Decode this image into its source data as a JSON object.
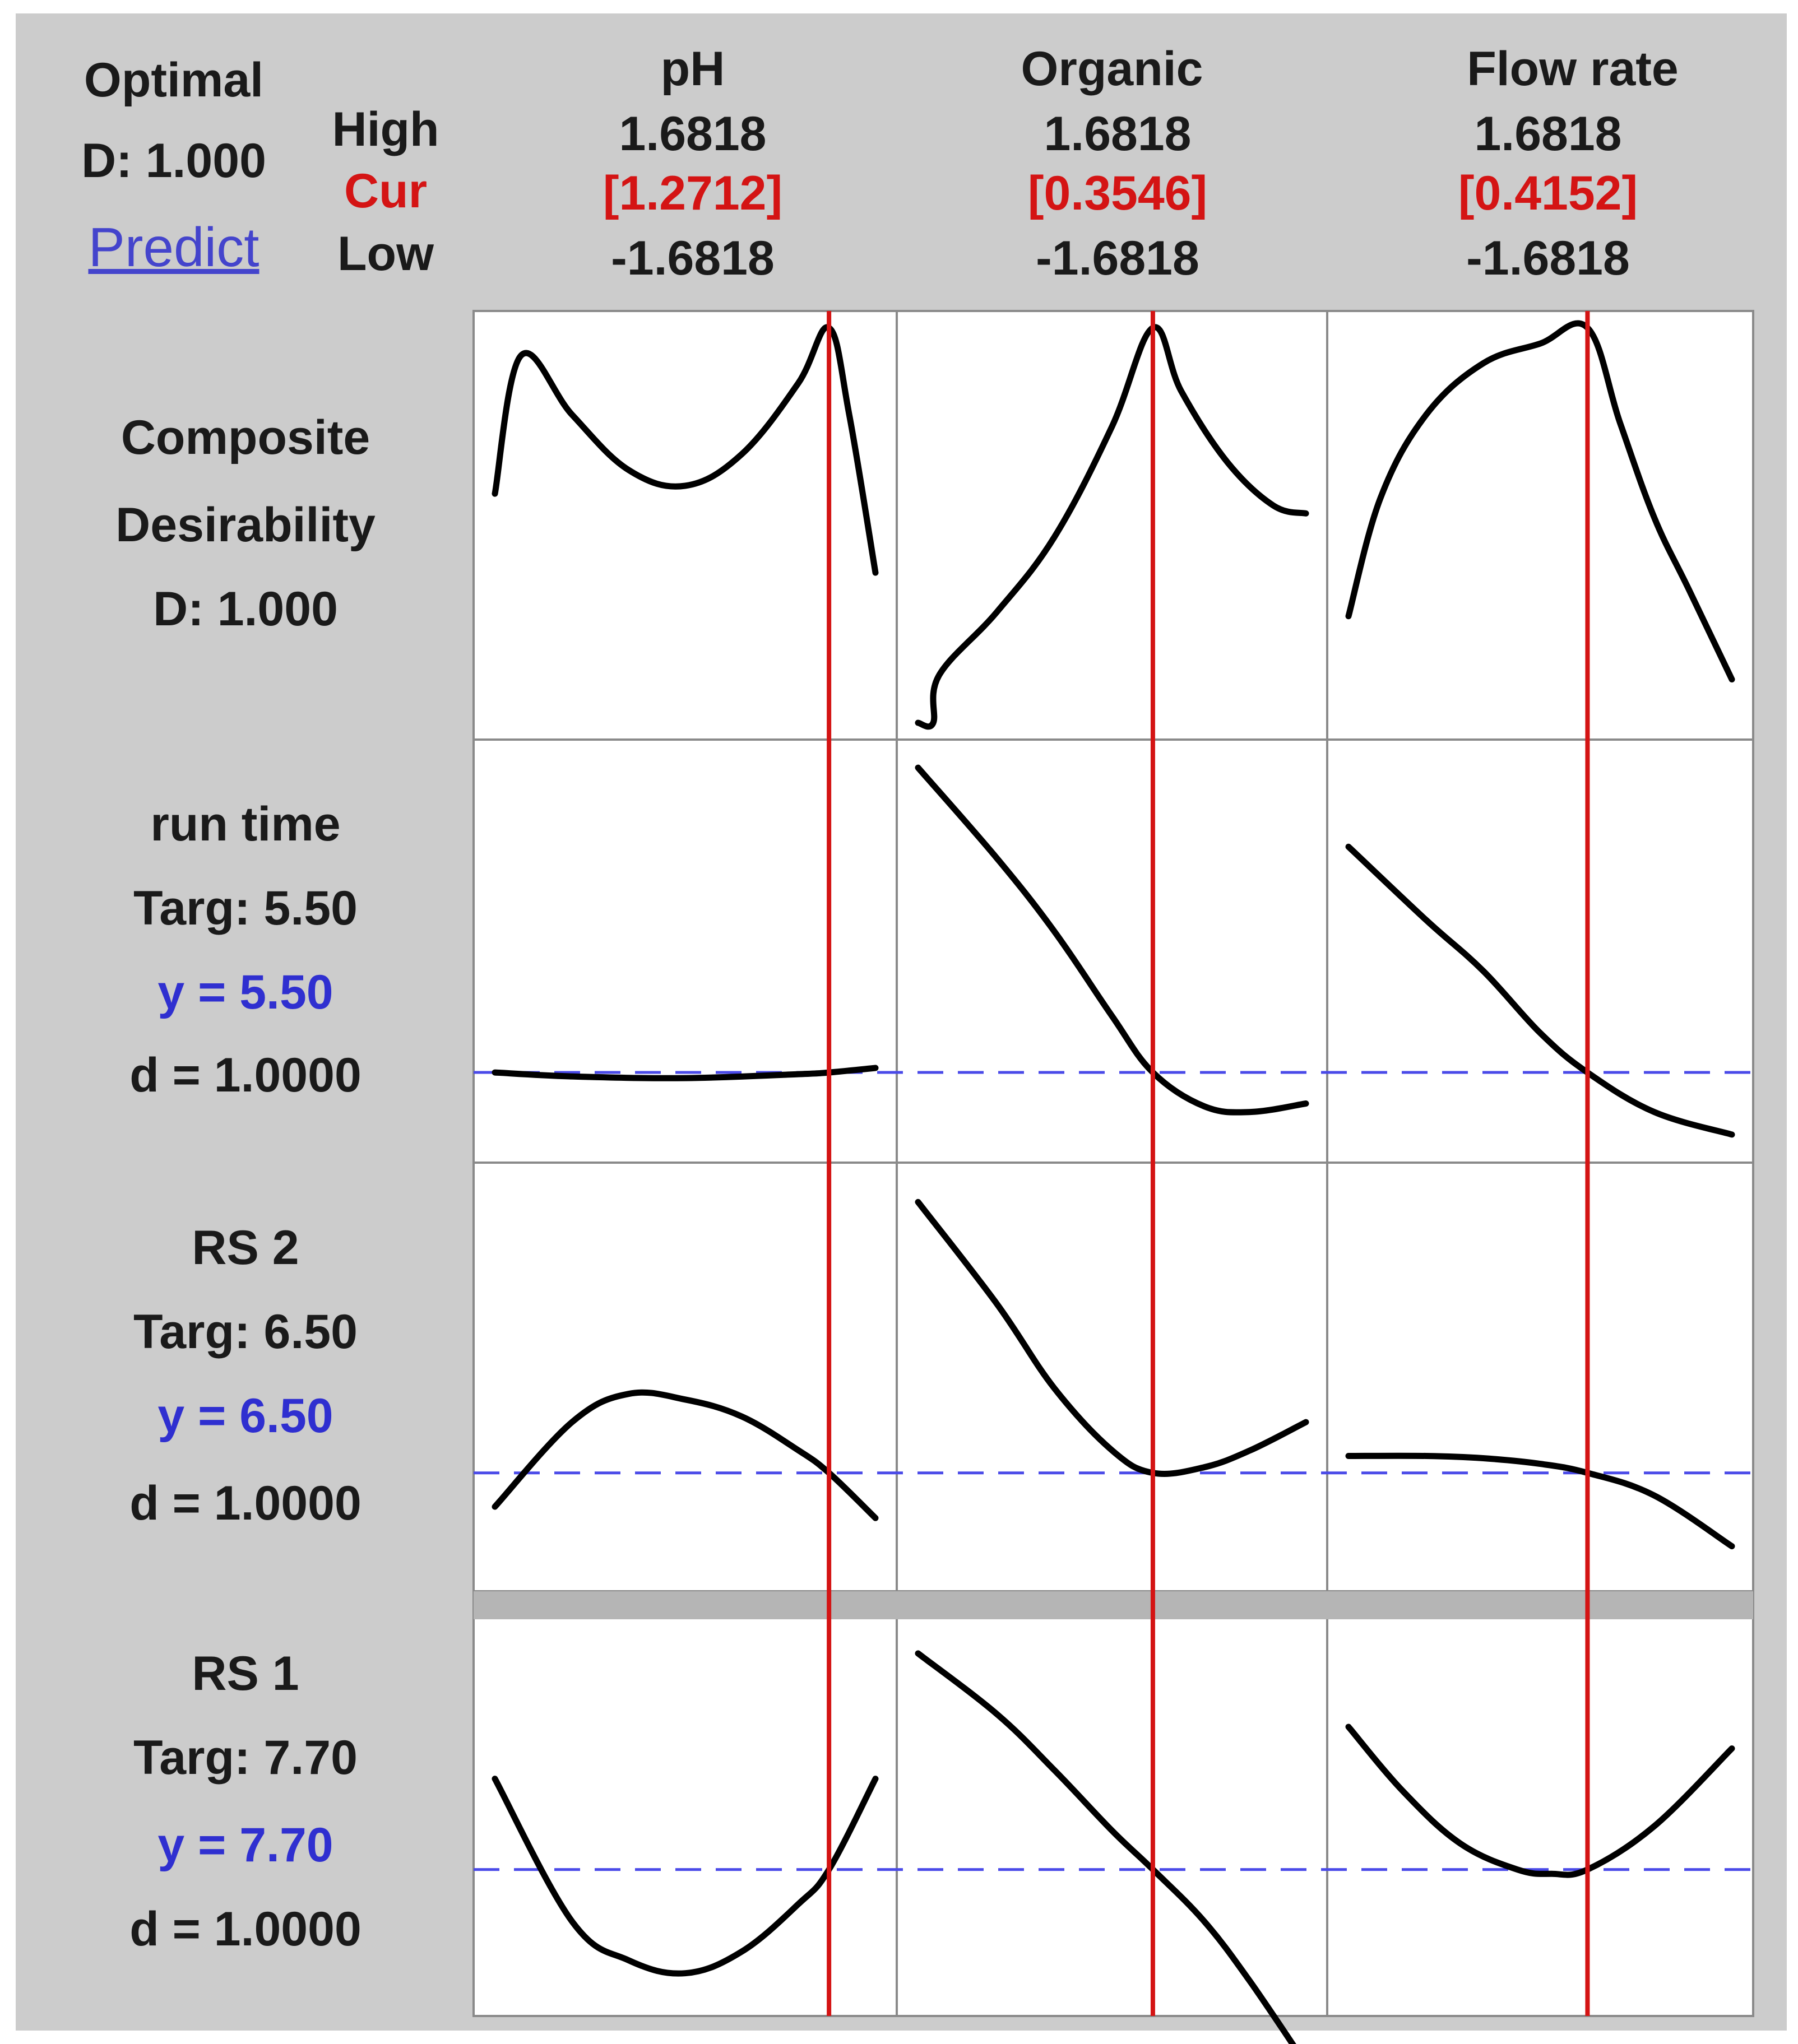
{
  "header": {
    "optimal_label": "Optimal",
    "d_value": "D: 1.000",
    "predict_link": "Predict",
    "high_label": "High",
    "cur_label": "Cur",
    "low_label": "Low"
  },
  "factors": [
    {
      "name": "pH",
      "high": "1.6818",
      "cur": "[1.2712]",
      "low": "-1.6818"
    },
    {
      "name": "Organic",
      "high": "1.6818",
      "cur": "[0.3546]",
      "low": "-1.6818"
    },
    {
      "name": "Flow rate",
      "high": "1.6818",
      "cur": "[0.4152]",
      "low": "-1.6818"
    }
  ],
  "rows": [
    {
      "line1": "Composite",
      "line2": "Desirability",
      "line3": "D: 1.000"
    },
    {
      "line1": "run time",
      "line2": "Targ: 5.50",
      "line3": "y = 5.50",
      "line4": "d = 1.0000"
    },
    {
      "line1": "RS 2",
      "line2": "Targ: 6.50",
      "line3": "y = 6.50",
      "line4": "d = 1.0000"
    },
    {
      "line1": "RS 1",
      "line2": "Targ: 7.70",
      "line3": "y = 7.70",
      "line4": "d = 1.0000"
    }
  ],
  "colors": {
    "background": "#cccccc",
    "plot_bg": "#ffffff",
    "curve": "#000000",
    "current_line": "#d41414",
    "target_line": "#4a4ae8",
    "y_text": "#2f2fd0",
    "cur_text": "#d41414"
  },
  "chart_data": {
    "type": "line",
    "x_range": [
      -1.6818,
      1.6818
    ],
    "factors": [
      "pH",
      "Organic",
      "Flow rate"
    ],
    "current": [
      1.2712,
      0.3546,
      0.4152
    ],
    "responses": [
      "Composite Desirability",
      "run time",
      "RS 2",
      "RS 1"
    ],
    "targets": [
      null,
      5.5,
      6.5,
      7.7
    ],
    "curves": [
      {
        "response": "Composite Desirability",
        "factor": "pH",
        "x": [
          -1.6818,
          -1.45,
          -1.0,
          -0.5,
          0.0,
          0.5,
          1.0,
          1.2712,
          1.45,
          1.6818
        ],
        "y": [
          0.58,
          0.93,
          0.78,
          0.64,
          0.6,
          0.68,
          0.86,
          1.0,
          0.78,
          0.38
        ]
      },
      {
        "response": "Composite Desirability",
        "factor": "Organic",
        "x": [
          -1.6818,
          -1.55,
          -1.5,
          -1.0,
          -0.5,
          0.0,
          0.3546,
          0.6,
          1.0,
          1.4,
          1.6818
        ],
        "y": [
          0.0,
          0.0,
          0.12,
          0.28,
          0.47,
          0.75,
          1.0,
          0.84,
          0.66,
          0.55,
          0.53
        ]
      },
      {
        "response": "Composite Desirability",
        "factor": "Flow rate",
        "x": [
          -1.6818,
          -1.4,
          -1.0,
          -0.5,
          0.0,
          0.4152,
          0.7,
          1.0,
          1.3,
          1.6818
        ],
        "y": [
          0.27,
          0.57,
          0.78,
          0.91,
          0.96,
          1.0,
          0.76,
          0.52,
          0.34,
          0.11
        ]
      },
      {
        "response": "run time",
        "factor": "pH",
        "x": [
          -1.6818,
          -1.0,
          0.0,
          1.0,
          1.2712,
          1.6818
        ],
        "y": [
          5.5,
          5.43,
          5.4,
          5.47,
          5.5,
          5.58
        ]
      },
      {
        "response": "run time",
        "factor": "Organic",
        "x": [
          -1.6818,
          -1.0,
          -0.5,
          0.0,
          0.3546,
          0.8,
          1.2,
          1.6818
        ],
        "y": [
          10.9,
          9.3,
          8.0,
          6.5,
          5.5,
          4.9,
          4.8,
          4.95
        ]
      },
      {
        "response": "run time",
        "factor": "Flow rate",
        "x": [
          -1.6818,
          -1.0,
          -0.5,
          0.0,
          0.4152,
          1.0,
          1.6818
        ],
        "y": [
          9.5,
          8.2,
          7.3,
          6.2,
          5.5,
          4.8,
          4.4
        ]
      },
      {
        "response": "RS 2",
        "factor": "pH",
        "x": [
          -1.6818,
          -1.0,
          -0.5,
          0.0,
          0.5,
          1.0,
          1.2712,
          1.6818
        ],
        "y": [
          6.2,
          6.95,
          7.2,
          7.15,
          7.0,
          6.7,
          6.5,
          6.1
        ]
      },
      {
        "response": "RS 2",
        "factor": "Organic",
        "x": [
          -1.6818,
          -1.0,
          -0.5,
          0.0,
          0.3546,
          0.8,
          1.2,
          1.6818
        ],
        "y": [
          8.9,
          8.0,
          7.25,
          6.7,
          6.5,
          6.55,
          6.7,
          6.95
        ]
      },
      {
        "response": "RS 2",
        "factor": "Flow rate",
        "x": [
          -1.6818,
          -1.0,
          -0.5,
          0.0,
          0.4152,
          1.0,
          1.6818
        ],
        "y": [
          6.65,
          6.65,
          6.63,
          6.58,
          6.5,
          6.3,
          5.85
        ]
      },
      {
        "response": "RS 1",
        "factor": "pH",
        "x": [
          -1.6818,
          -1.0,
          -0.5,
          0.0,
          0.5,
          1.0,
          1.2712,
          1.6818
        ],
        "y": [
          7.91,
          7.58,
          7.49,
          7.46,
          7.51,
          7.62,
          7.7,
          7.91
        ]
      },
      {
        "response": "RS 1",
        "factor": "Organic",
        "x": [
          -1.6818,
          -1.0,
          -0.5,
          0.0,
          0.3546,
          0.8,
          1.2,
          1.6818
        ],
        "y": [
          8.2,
          8.06,
          7.93,
          7.79,
          7.7,
          7.58,
          7.44,
          7.25
        ]
      },
      {
        "response": "RS 1",
        "factor": "Flow rate",
        "x": [
          -1.6818,
          -1.2,
          -0.7,
          -0.2,
          0.1,
          0.4152,
          1.0,
          1.6818
        ],
        "y": [
          8.03,
          7.88,
          7.76,
          7.7,
          7.69,
          7.7,
          7.8,
          7.98
        ]
      }
    ]
  }
}
